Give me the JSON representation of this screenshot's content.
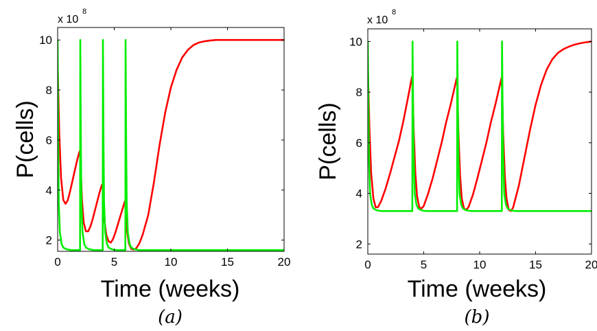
{
  "figure": {
    "panels": [
      {
        "caption": "(a)",
        "ylabel": "P(cells)",
        "xlabel": "Time (weeks)",
        "multiplier": "x 10",
        "multiplier_exp": "8"
      },
      {
        "caption": "(b)",
        "ylabel": "P(cells)",
        "xlabel": "Time (weeks)",
        "multiplier": "x 10",
        "multiplier_exp": "8"
      }
    ]
  },
  "chart_data": [
    {
      "type": "line",
      "title": "",
      "xlabel": "Time (weeks)",
      "ylabel": "P(cells)",
      "y_multiplier": "x 10^8",
      "xlim": [
        0,
        20
      ],
      "ylim": [
        1.55,
        10.5
      ],
      "xticks": [
        0,
        5,
        10,
        15,
        20
      ],
      "yticks": [
        2,
        4,
        6,
        8,
        10
      ],
      "xtick_labels": [
        "0",
        "5",
        "10",
        "15",
        "20"
      ],
      "ytick_labels": [
        "2",
        "4",
        "6",
        "8",
        "10"
      ],
      "grid": false,
      "series": [
        {
          "color": "#ff0000",
          "x": [
            0,
            0.15,
            0.3,
            0.5,
            0.7,
            0.9,
            1.1,
            1.3,
            1.5,
            1.7,
            1.9,
            2.0,
            2.05,
            2.15,
            2.3,
            2.5,
            2.7,
            2.9,
            3.1,
            3.3,
            3.5,
            3.7,
            3.9,
            4.0,
            4.05,
            4.15,
            4.3,
            4.5,
            4.7,
            4.9,
            5.1,
            5.3,
            5.5,
            5.7,
            5.9,
            6.0,
            6.05,
            6.15,
            6.3,
            6.5,
            6.7,
            6.9,
            7.2,
            7.5,
            8.0,
            8.5,
            9.0,
            9.5,
            10.0,
            10.5,
            11.0,
            11.5,
            12.0,
            12.5,
            13.0,
            13.5,
            14.0,
            14.5,
            15.0,
            16.0,
            17.0,
            18.0,
            19.0,
            20.0
          ],
          "y": [
            9.0,
            6.2,
            4.5,
            3.6,
            3.45,
            3.6,
            3.95,
            4.35,
            4.75,
            5.15,
            5.5,
            5.6,
            4.8,
            3.6,
            2.7,
            2.35,
            2.35,
            2.55,
            2.85,
            3.2,
            3.55,
            3.9,
            4.2,
            4.25,
            3.6,
            2.7,
            2.2,
            1.95,
            1.9,
            2.05,
            2.3,
            2.6,
            2.9,
            3.2,
            3.5,
            3.6,
            3.0,
            2.3,
            1.85,
            1.65,
            1.62,
            1.65,
            1.85,
            2.2,
            3.0,
            4.3,
            5.8,
            7.1,
            8.1,
            8.8,
            9.3,
            9.6,
            9.8,
            9.9,
            9.95,
            9.98,
            10.0,
            10.0,
            10.0,
            10.0,
            10.0,
            10.0,
            10.0,
            10.0
          ]
        },
        {
          "color": "#00ee00",
          "x": [
            0,
            0.05,
            0.1,
            0.2,
            0.35,
            0.5,
            0.8,
            1.2,
            1.9,
            1.98,
            2.0,
            2.05,
            2.1,
            2.2,
            2.35,
            2.5,
            2.8,
            3.2,
            3.9,
            3.98,
            4.0,
            4.05,
            4.1,
            4.2,
            4.35,
            4.5,
            4.8,
            5.2,
            5.9,
            5.98,
            6.0,
            6.05,
            6.1,
            6.2,
            6.35,
            6.5,
            6.8,
            7.2,
            8.0,
            10.0,
            12.0,
            14.0,
            16.0,
            18.0,
            20.0
          ],
          "y": [
            10.0,
            6.0,
            3.5,
            2.3,
            1.85,
            1.7,
            1.63,
            1.6,
            1.6,
            1.6,
            10.0,
            6.0,
            3.5,
            2.3,
            1.85,
            1.7,
            1.63,
            1.6,
            1.6,
            1.6,
            10.0,
            6.0,
            3.5,
            2.3,
            1.85,
            1.7,
            1.63,
            1.6,
            1.6,
            1.6,
            10.0,
            6.0,
            3.5,
            2.3,
            1.85,
            1.7,
            1.63,
            1.6,
            1.6,
            1.6,
            1.6,
            1.6,
            1.6,
            1.6,
            1.6
          ]
        }
      ]
    },
    {
      "type": "line",
      "title": "",
      "xlabel": "Time (weeks)",
      "ylabel": "P(cells)",
      "y_multiplier": "x 10^8",
      "xlim": [
        0,
        20
      ],
      "ylim": [
        1.6,
        10.5
      ],
      "xticks": [
        0,
        5,
        10,
        15,
        20
      ],
      "yticks": [
        2,
        4,
        6,
        8,
        10
      ],
      "xtick_labels": [
        "0",
        "5",
        "10",
        "15",
        "20"
      ],
      "ytick_labels": [
        "2",
        "4",
        "6",
        "8",
        "10"
      ],
      "grid": false,
      "series": [
        {
          "color": "#ff0000",
          "x": [
            0,
            0.15,
            0.3,
            0.5,
            0.7,
            0.9,
            1.2,
            1.6,
            2.0,
            2.4,
            2.8,
            3.2,
            3.6,
            3.95,
            4.0,
            4.1,
            4.25,
            4.4,
            4.6,
            4.8,
            5.0,
            5.4,
            5.8,
            6.2,
            6.6,
            7.0,
            7.4,
            7.95,
            8.0,
            8.1,
            8.25,
            8.4,
            8.6,
            8.8,
            9.0,
            9.4,
            9.8,
            10.2,
            10.6,
            11.0,
            11.4,
            11.95,
            12.0,
            12.1,
            12.25,
            12.4,
            12.6,
            12.8,
            13.0,
            13.5,
            14.0,
            14.5,
            15.0,
            15.5,
            16.0,
            16.5,
            17.0,
            17.5,
            18.0,
            18.5,
            19.0,
            19.5,
            20.0
          ],
          "y": [
            9.0,
            6.5,
            4.8,
            3.8,
            3.45,
            3.45,
            3.7,
            4.2,
            4.8,
            5.45,
            6.1,
            6.9,
            7.8,
            8.6,
            8.3,
            6.5,
            4.8,
            3.9,
            3.45,
            3.4,
            3.5,
            4.0,
            4.6,
            5.3,
            6.0,
            6.8,
            7.5,
            8.55,
            8.2,
            6.4,
            4.7,
            3.8,
            3.4,
            3.35,
            3.45,
            3.95,
            4.6,
            5.3,
            6.0,
            6.8,
            7.5,
            8.55,
            8.2,
            6.4,
            4.7,
            3.8,
            3.35,
            3.3,
            3.45,
            4.3,
            5.4,
            6.5,
            7.5,
            8.3,
            8.9,
            9.3,
            9.55,
            9.7,
            9.8,
            9.88,
            9.93,
            9.97,
            10.0
          ]
        },
        {
          "color": "#00ee00",
          "x": [
            0,
            0.05,
            0.1,
            0.2,
            0.35,
            0.5,
            0.8,
            1.2,
            2.0,
            3.9,
            3.98,
            4.0,
            4.05,
            4.1,
            4.2,
            4.35,
            4.5,
            4.8,
            5.2,
            6.0,
            7.9,
            7.98,
            8.0,
            8.05,
            8.1,
            8.2,
            8.35,
            8.5,
            8.8,
            9.2,
            10.0,
            11.9,
            11.98,
            12.0,
            12.05,
            12.1,
            12.2,
            12.35,
            12.5,
            12.8,
            13.2,
            14.0,
            16.0,
            18.0,
            20.0
          ],
          "y": [
            10.0,
            7.5,
            5.5,
            4.0,
            3.55,
            3.4,
            3.33,
            3.3,
            3.3,
            3.3,
            3.3,
            10.0,
            7.5,
            5.5,
            4.0,
            3.55,
            3.4,
            3.33,
            3.3,
            3.3,
            3.3,
            3.3,
            10.0,
            7.5,
            5.5,
            4.0,
            3.55,
            3.4,
            3.33,
            3.3,
            3.3,
            3.3,
            3.3,
            10.0,
            7.5,
            5.5,
            4.0,
            3.55,
            3.4,
            3.33,
            3.3,
            3.3,
            3.3,
            3.3,
            3.3
          ]
        }
      ]
    }
  ]
}
